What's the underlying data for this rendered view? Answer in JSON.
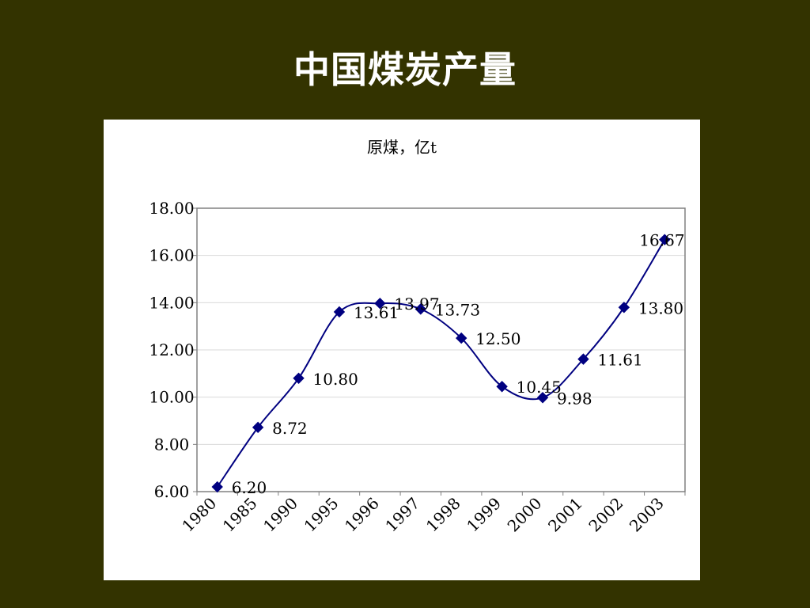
{
  "slide": {
    "title": "中国煤炭产量"
  },
  "chart_data": {
    "type": "line",
    "title": "原煤，亿t",
    "xlabel": "",
    "ylabel": "",
    "categories": [
      "1980",
      "1985",
      "1990",
      "1995",
      "1996",
      "1997",
      "1998",
      "1999",
      "2000",
      "2001",
      "2002",
      "2003"
    ],
    "series": [
      {
        "values": [
          6.2,
          8.72,
          10.8,
          13.61,
          13.97,
          13.73,
          12.5,
          10.45,
          9.98,
          11.61,
          13.8,
          16.67
        ],
        "data_labels": [
          "6.20",
          "8.72",
          "10.80",
          "13.61",
          "13.97",
          "13.73",
          "12.50",
          "10.45",
          "9.98",
          "11.61",
          "13.80",
          "16.67"
        ],
        "color": "#000080",
        "marker": "diamond",
        "smooth": true
      }
    ],
    "ylim": [
      6,
      18
    ],
    "yticks": [
      "6.00",
      "8.00",
      "10.00",
      "12.00",
      "14.00",
      "16.00",
      "18.00"
    ],
    "grid": true,
    "legend": "none",
    "colors": {
      "line": "#000080",
      "gridline": "#d9d9d9",
      "axis": "#808080",
      "background": "#333300"
    }
  }
}
